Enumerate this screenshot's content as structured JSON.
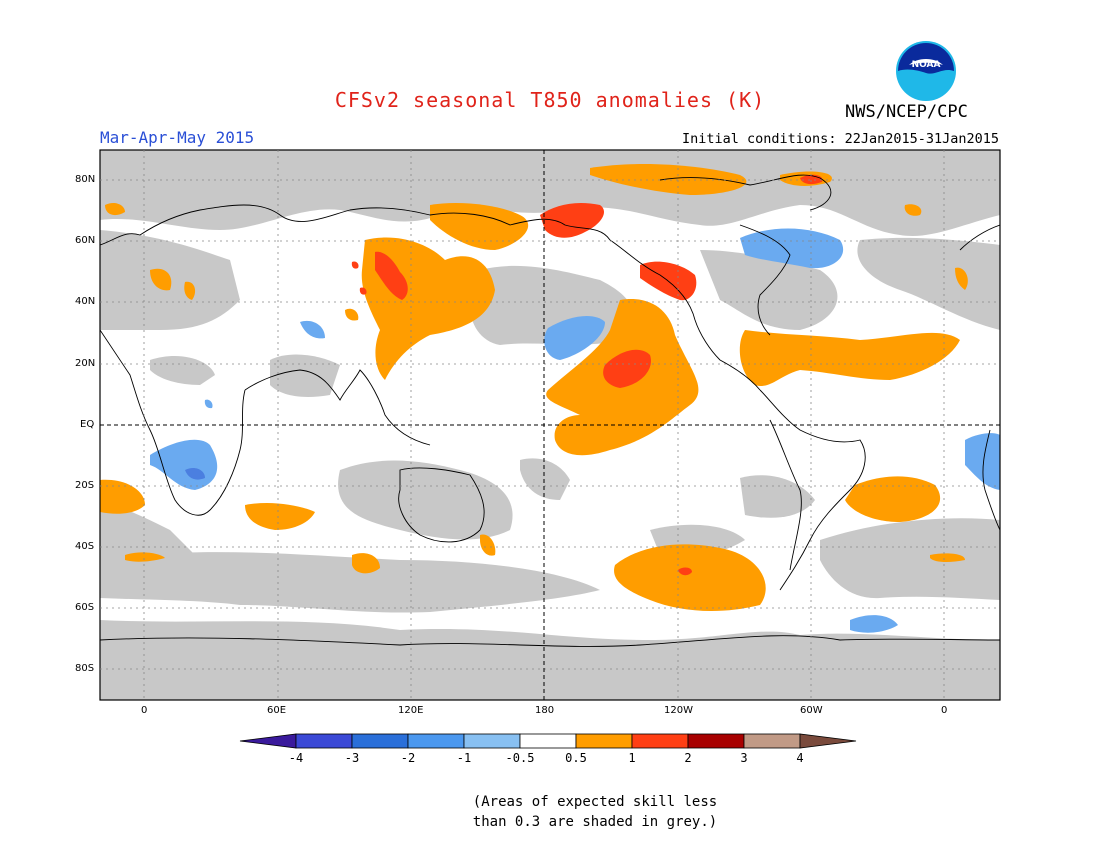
{
  "header": {
    "title": "CFSv2 seasonal T850 anomalies (K)",
    "season": "Mar-Apr-May 2015",
    "initial_conditions": "Initial conditions: 22Jan2015-31Jan2015",
    "agency": "NWS/NCEP/CPC",
    "logo_text": "NOAA"
  },
  "map": {
    "lon_labels": [
      "0",
      "60E",
      "120E",
      "180",
      "120W",
      "60W",
      "0"
    ],
    "lat_labels": [
      "80N",
      "60N",
      "40N",
      "20N",
      "EQ",
      "20S",
      "40S",
      "60S",
      "80S"
    ]
  },
  "legend": {
    "labels": [
      "-4",
      "-3",
      "-2",
      "-1",
      "-0.5",
      "0.5",
      "1",
      "2",
      "3",
      "4"
    ],
    "colors": [
      "#3a1a9c",
      "#3b49d6",
      "#2a6fd9",
      "#4b98ef",
      "#88c0f2",
      "#ffffff",
      "#ff9d00",
      "#ff3f14",
      "#a80000",
      "#c19a86",
      "#7a4a3c"
    ]
  },
  "footnote": {
    "line1": "(Areas of expected skill less",
    "line2": "than 0.3 are shaded in grey.)"
  },
  "colors": {
    "grey": "#c8c8c8",
    "orange": "#ff9d00",
    "red": "#ff3f14",
    "lightblue": "#6aaaf0",
    "title": "#e0231a",
    "season": "#2a4fd6"
  }
}
